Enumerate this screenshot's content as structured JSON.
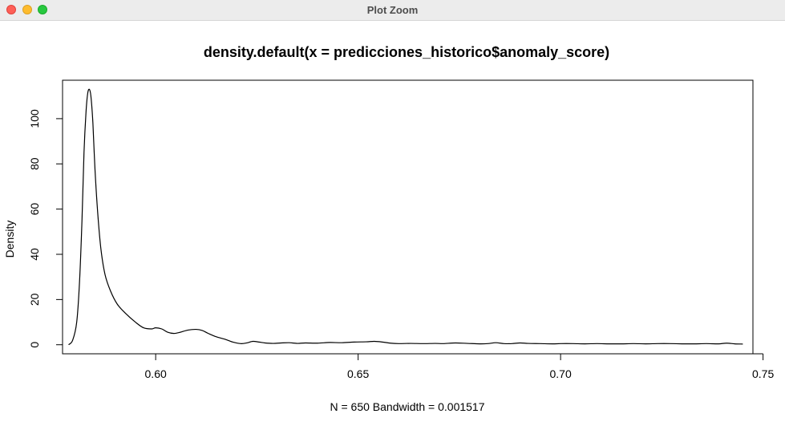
{
  "window": {
    "title": "Plot Zoom",
    "controls": [
      "close",
      "minimize",
      "maximize"
    ]
  },
  "chart_data": {
    "type": "line",
    "title": "density.default(x = predicciones_historico$anomaly_score)",
    "xlabel": "N = 650   Bandwidth = 0.001517",
    "ylabel": "Density",
    "xlim": [
      0.577,
      0.7475
    ],
    "ylim": [
      -4,
      117
    ],
    "x_ticks": [
      0.6,
      0.65,
      0.7,
      0.75
    ],
    "x_tick_labels": [
      "0.60",
      "0.65",
      "0.70",
      "0.75"
    ],
    "y_ticks": [
      0,
      20,
      40,
      60,
      80,
      100
    ],
    "y_tick_labels": [
      "0",
      "20",
      "40",
      "60",
      "80",
      "100"
    ],
    "grid": false,
    "line_color": "#000000",
    "series": [
      {
        "x": [
          0.5785,
          0.5795,
          0.5805,
          0.5812,
          0.5818,
          0.5823,
          0.5828,
          0.5832,
          0.5836,
          0.584,
          0.5845,
          0.585,
          0.5857,
          0.5865,
          0.5875,
          0.5888,
          0.5905,
          0.5925,
          0.595,
          0.597,
          0.599,
          0.6,
          0.6015,
          0.603,
          0.6045,
          0.606,
          0.608,
          0.61,
          0.6115,
          0.613,
          0.615,
          0.617,
          0.619,
          0.621,
          0.6225,
          0.624,
          0.6255,
          0.627,
          0.629,
          0.631,
          0.633,
          0.635,
          0.637,
          0.64,
          0.643,
          0.646,
          0.649,
          0.652,
          0.654,
          0.656,
          0.658,
          0.66,
          0.663,
          0.666,
          0.669,
          0.671,
          0.674,
          0.677,
          0.68,
          0.682,
          0.684,
          0.686,
          0.688,
          0.69,
          0.692,
          0.695,
          0.698,
          0.7,
          0.703,
          0.706,
          0.709,
          0.712,
          0.715,
          0.718,
          0.721,
          0.724,
          0.727,
          0.73,
          0.733,
          0.736,
          0.739,
          0.741,
          0.743,
          0.745
        ],
        "y": [
          0,
          2,
          10,
          28,
          55,
          85,
          103,
          111,
          113,
          110,
          98,
          78,
          58,
          42,
          31,
          24,
          18,
          14,
          10,
          7.5,
          7,
          7.5,
          7,
          5.5,
          5,
          5.5,
          6.5,
          6.8,
          6.3,
          5,
          3.5,
          2.5,
          1.2,
          0.5,
          0.8,
          1.5,
          1.2,
          0.8,
          0.6,
          0.8,
          0.9,
          0.6,
          0.8,
          0.7,
          1.0,
          0.9,
          1.2,
          1.3,
          1.5,
          1.2,
          0.7,
          0.5,
          0.6,
          0.5,
          0.6,
          0.5,
          0.8,
          0.6,
          0.4,
          0.5,
          0.9,
          0.5,
          0.5,
          0.8,
          0.6,
          0.5,
          0.4,
          0.5,
          0.5,
          0.4,
          0.5,
          0.4,
          0.4,
          0.5,
          0.4,
          0.5,
          0.5,
          0.4,
          0.4,
          0.5,
          0.4,
          0.7,
          0.4,
          0.3
        ]
      }
    ]
  }
}
